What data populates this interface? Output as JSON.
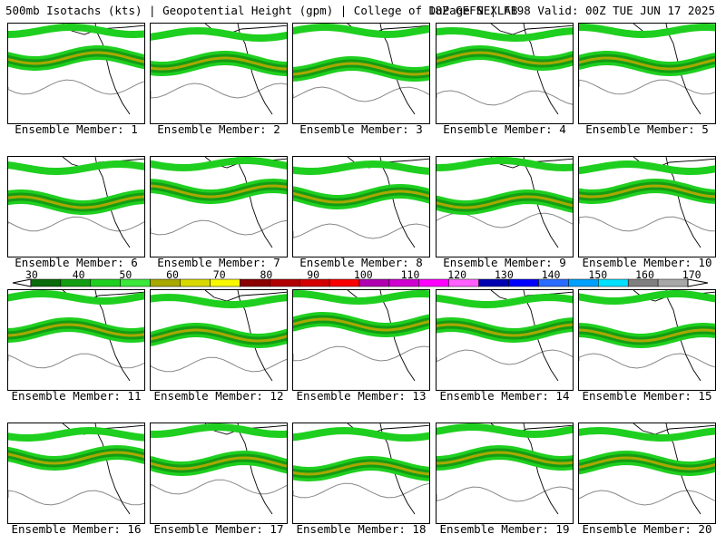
{
  "header": {
    "left_title": "500mb Isotachs (kts) | Geopotential Height (gpm) | College of DuPage NEXLAB",
    "right_title": "18Z GEFS | F198 Valid: 00Z TUE JUN 17 2025"
  },
  "panels": [
    {
      "label": "Ensemble Member: 1"
    },
    {
      "label": "Ensemble Member: 2"
    },
    {
      "label": "Ensemble Member: 3"
    },
    {
      "label": "Ensemble Member: 4"
    },
    {
      "label": "Ensemble Member: 5"
    },
    {
      "label": "Ensemble Member: 6"
    },
    {
      "label": "Ensemble Member: 7"
    },
    {
      "label": "Ensemble Member: 8"
    },
    {
      "label": "Ensemble Member: 9"
    },
    {
      "label": "Ensemble Member: 10"
    },
    {
      "label": "Ensemble Member: 11"
    },
    {
      "label": "Ensemble Member: 12"
    },
    {
      "label": "Ensemble Member: 13"
    },
    {
      "label": "Ensemble Member: 14"
    },
    {
      "label": "Ensemble Member: 15"
    },
    {
      "label": "Ensemble Member: 16"
    },
    {
      "label": "Ensemble Member: 17"
    },
    {
      "label": "Ensemble Member: 18"
    },
    {
      "label": "Ensemble Member: 19"
    },
    {
      "label": "Ensemble Member: 20"
    }
  ],
  "colorbar": {
    "ticks": [
      "30",
      "40",
      "50",
      "60",
      "70",
      "80",
      "90",
      "100",
      "110",
      "120",
      "130",
      "140",
      "150",
      "160",
      "170"
    ],
    "colors": [
      "#0b6b0b",
      "#139d13",
      "#1fcf1f",
      "#3be83b",
      "#a8a800",
      "#d8d800",
      "#f8f800",
      "#8b0000",
      "#b00000",
      "#d40000",
      "#f80000",
      "#b000b0",
      "#d000d0",
      "#ff00ff",
      "#ff60ff",
      "#0000b0",
      "#0000ff",
      "#2a6cff",
      "#00a0ff",
      "#00e0ff",
      "#808080",
      "#a8a8a8"
    ]
  }
}
